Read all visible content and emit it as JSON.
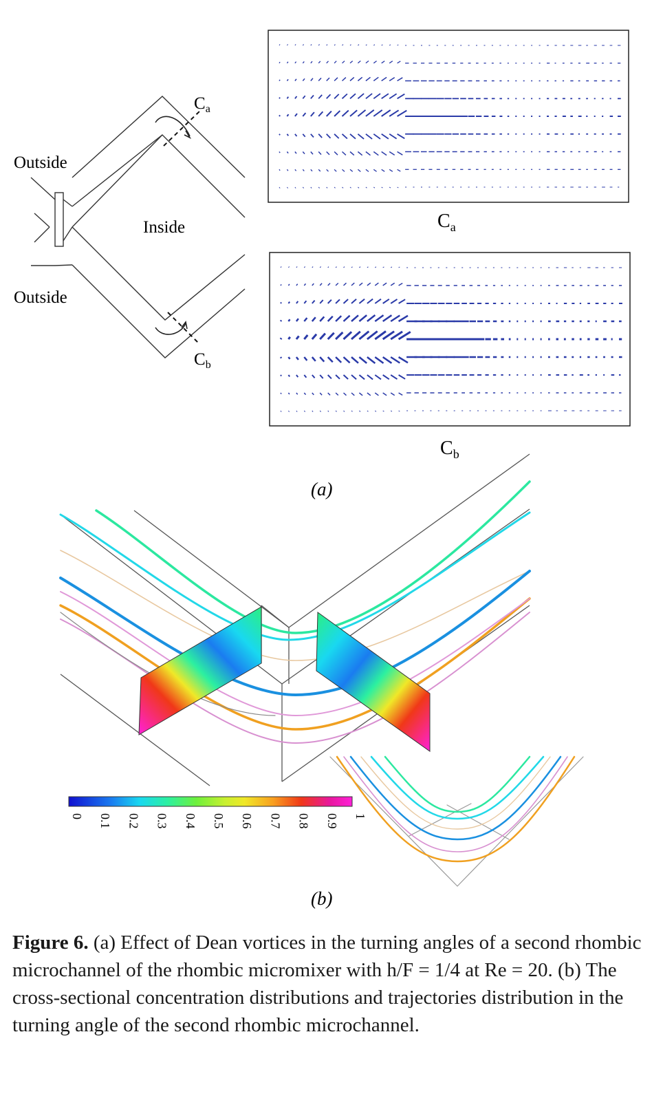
{
  "panel_a": {
    "label_outside_top": "Outside",
    "label_outside_bottom": "Outside",
    "label_inside": "Inside",
    "section_a_main": "C",
    "section_a_sub": "a",
    "section_b_main": "C",
    "section_b_sub": "b",
    "sublabel": "(a)"
  },
  "panel_b": {
    "sublabel": "(b)",
    "colorbar": {
      "ticks": [
        "0",
        "0.1",
        "0.2",
        "0.3",
        "0.4",
        "0.5",
        "0.6",
        "0.7",
        "0.8",
        "0.9",
        "1"
      ],
      "colors": [
        "#1010d0",
        "#1a7cf0",
        "#19d8f0",
        "#2cf0a0",
        "#6ef03c",
        "#c8f030",
        "#f0e828",
        "#f8a020",
        "#f03818",
        "#e8189c",
        "#ff20d8"
      ]
    }
  },
  "caption": {
    "label": "Figure 6.",
    "text_1": " (a) Effect of Dean vortices in the turning angles of a second rhombic microchannel of the rhombic micromixer with h/F = 1/4 at Re = 20. (b) The cross-sectional concentration distributions and trajectories distribution in the turning angle of the second rhombic microchannel."
  }
}
